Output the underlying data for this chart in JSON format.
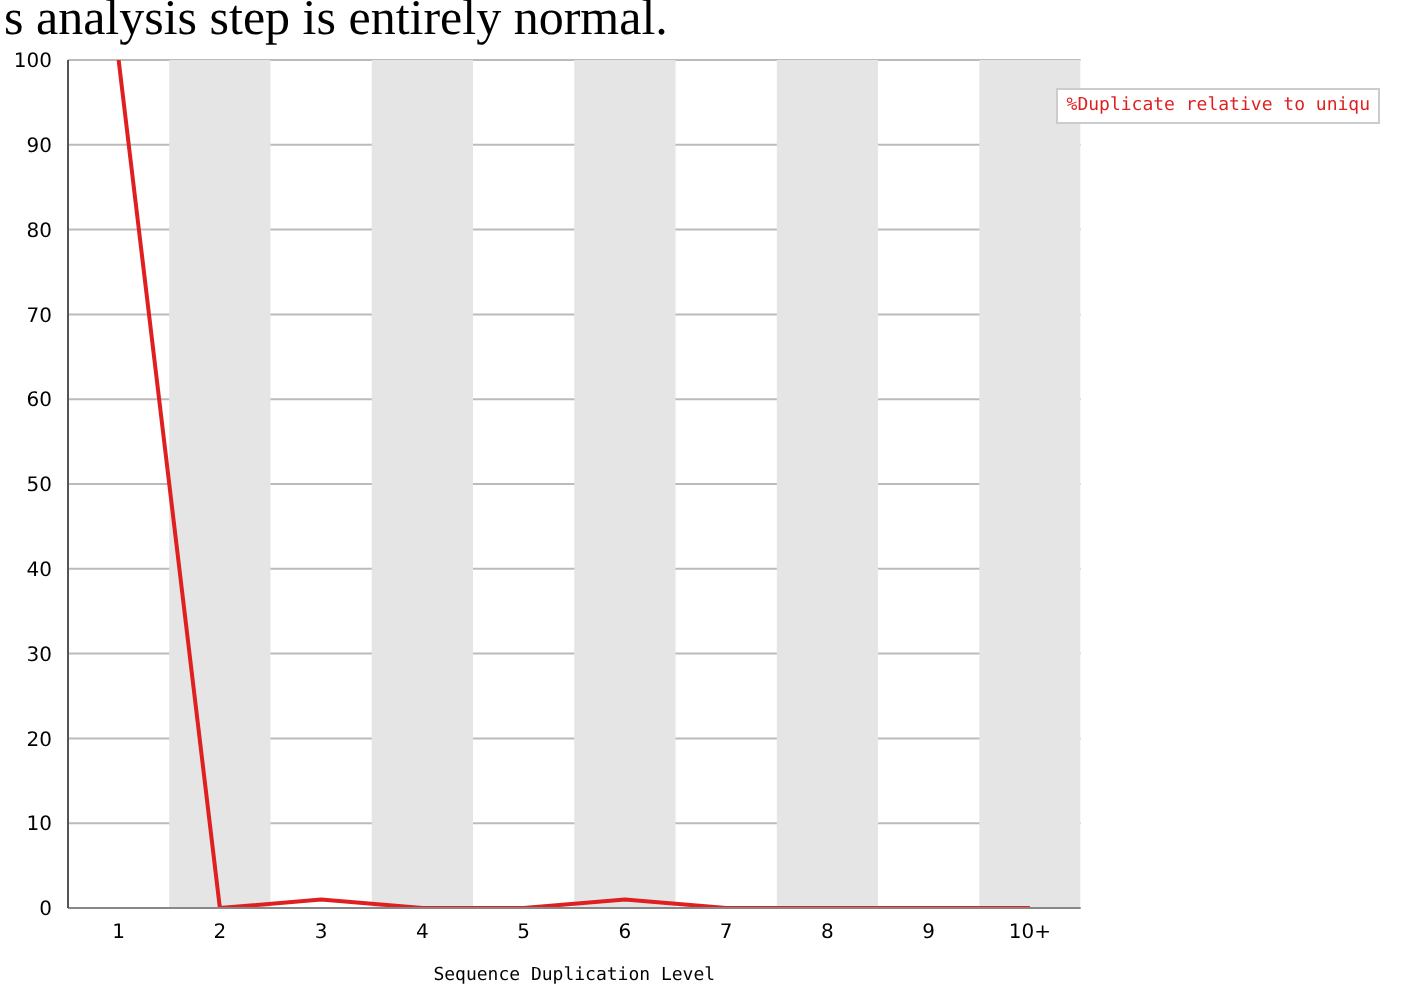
{
  "chart_data": {
    "type": "line",
    "annotations": [
      "s analysis step is entirely normal."
    ],
    "xlabel": "Sequence Duplication Level",
    "categories": [
      "1",
      "2",
      "3",
      "4",
      "5",
      "6",
      "7",
      "8",
      "9",
      "10+"
    ],
    "series": [
      {
        "name": "%Duplicate relative to uniqu",
        "color": "#e02020",
        "values": [
          100,
          0,
          1,
          0,
          0,
          1,
          0,
          0,
          0,
          0
        ]
      }
    ],
    "ylim": [
      0,
      100
    ],
    "yticks": [
      0,
      10,
      20,
      30,
      40,
      50,
      60,
      70,
      80,
      90,
      100
    ],
    "grid": "y",
    "legend": "top right",
    "marker": "none",
    "line_style": "solid",
    "bands": [
      {
        "axis": "x",
        "from": "2",
        "to": "2",
        "color": "#e5e5e5"
      },
      {
        "axis": "x",
        "from": "4",
        "to": "4",
        "color": "#e5e5e5"
      },
      {
        "axis": "x",
        "from": "6",
        "to": "6",
        "color": "#e5e5e5"
      },
      {
        "axis": "x",
        "from": "8",
        "to": "8",
        "color": "#e5e5e5"
      },
      {
        "axis": "x",
        "from": "10+",
        "to": "10+",
        "color": "#e5e5e5"
      }
    ]
  }
}
